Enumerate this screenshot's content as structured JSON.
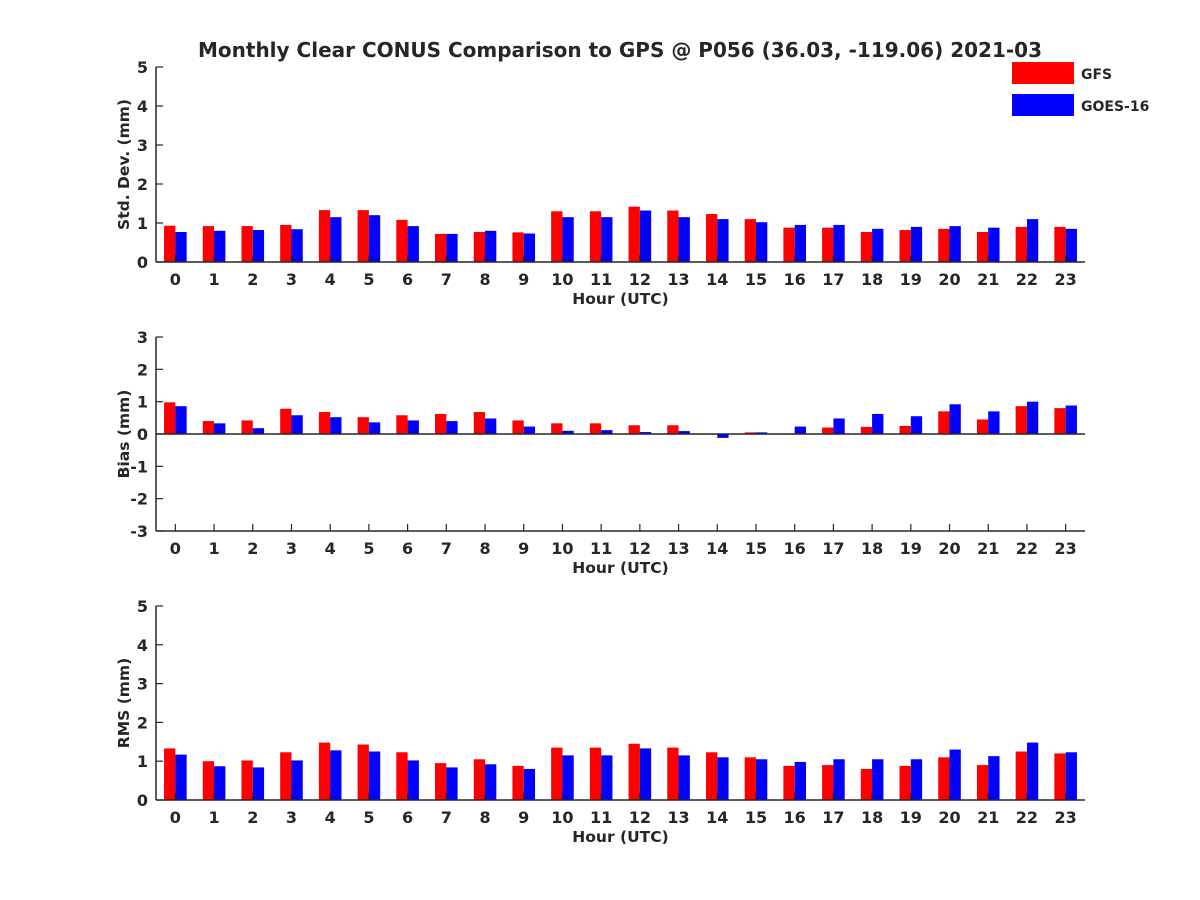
{
  "title": "Monthly Clear CONUS Comparison to GPS @ P056 (36.03, -119.06) 2021-03",
  "colors": {
    "GFS": "#ff0000",
    "GOES-16": "#0000ff",
    "axis": "#262626"
  },
  "legend": {
    "placement": "top-right",
    "items": [
      "GFS",
      "GOES-16"
    ]
  },
  "chart_data": [
    {
      "type": "bar",
      "xlabel": "Hour (UTC)",
      "ylabel": "Std. Dev. (mm)",
      "ylim": [
        0,
        5
      ],
      "yticks": [
        0,
        1,
        2,
        3,
        4,
        5
      ],
      "grid": false,
      "categories": [
        "0",
        "1",
        "2",
        "3",
        "4",
        "5",
        "6",
        "7",
        "8",
        "9",
        "10",
        "11",
        "12",
        "13",
        "14",
        "15",
        "16",
        "17",
        "18",
        "19",
        "20",
        "21",
        "22",
        "23"
      ],
      "series": [
        {
          "name": "GFS",
          "values": [
            0.93,
            0.92,
            0.92,
            0.95,
            1.33,
            1.33,
            1.08,
            0.72,
            0.77,
            0.76,
            1.3,
            1.3,
            1.42,
            1.32,
            1.23,
            1.1,
            0.88,
            0.88,
            0.77,
            0.82,
            0.85,
            0.77,
            0.9,
            0.9
          ]
        },
        {
          "name": "GOES-16",
          "values": [
            0.77,
            0.8,
            0.82,
            0.84,
            1.15,
            1.2,
            0.92,
            0.72,
            0.8,
            0.73,
            1.15,
            1.15,
            1.32,
            1.15,
            1.1,
            1.02,
            0.95,
            0.95,
            0.85,
            0.9,
            0.92,
            0.88,
            1.1,
            0.85
          ]
        }
      ]
    },
    {
      "type": "bar",
      "xlabel": "Hour (UTC)",
      "ylabel": "Bias (mm)",
      "ylim": [
        -3,
        3
      ],
      "yticks": [
        -3,
        -2,
        -1,
        0,
        1,
        2,
        3
      ],
      "grid": false,
      "categories": [
        "0",
        "1",
        "2",
        "3",
        "4",
        "5",
        "6",
        "7",
        "8",
        "9",
        "10",
        "11",
        "12",
        "13",
        "14",
        "15",
        "16",
        "17",
        "18",
        "19",
        "20",
        "21",
        "22",
        "23"
      ],
      "series": [
        {
          "name": "GFS",
          "values": [
            0.98,
            0.4,
            0.42,
            0.78,
            0.68,
            0.52,
            0.58,
            0.62,
            0.68,
            0.42,
            0.33,
            0.33,
            0.27,
            0.27,
            0.0,
            0.05,
            0.0,
            0.2,
            0.22,
            0.25,
            0.7,
            0.45,
            0.86,
            0.8
          ]
        },
        {
          "name": "GOES-16",
          "values": [
            0.86,
            0.33,
            0.18,
            0.58,
            0.52,
            0.36,
            0.42,
            0.4,
            0.48,
            0.23,
            0.1,
            0.12,
            0.06,
            0.09,
            -0.12,
            0.05,
            0.23,
            0.48,
            0.62,
            0.55,
            0.92,
            0.7,
            1.0,
            0.88
          ]
        }
      ]
    },
    {
      "type": "bar",
      "xlabel": "Hour (UTC)",
      "ylabel": "RMS (mm)",
      "ylim": [
        0,
        5
      ],
      "yticks": [
        0,
        1,
        2,
        3,
        4,
        5
      ],
      "grid": false,
      "categories": [
        "0",
        "1",
        "2",
        "3",
        "4",
        "5",
        "6",
        "7",
        "8",
        "9",
        "10",
        "11",
        "12",
        "13",
        "14",
        "15",
        "16",
        "17",
        "18",
        "19",
        "20",
        "21",
        "22",
        "23"
      ],
      "series": [
        {
          "name": "GFS",
          "values": [
            1.33,
            1.0,
            1.02,
            1.23,
            1.48,
            1.43,
            1.23,
            0.95,
            1.05,
            0.88,
            1.35,
            1.35,
            1.45,
            1.35,
            1.23,
            1.1,
            0.88,
            0.9,
            0.8,
            0.88,
            1.1,
            0.9,
            1.25,
            1.2
          ]
        },
        {
          "name": "GOES-16",
          "values": [
            1.17,
            0.87,
            0.84,
            1.02,
            1.28,
            1.25,
            1.02,
            0.84,
            0.92,
            0.8,
            1.15,
            1.15,
            1.33,
            1.15,
            1.1,
            1.05,
            0.98,
            1.05,
            1.05,
            1.05,
            1.3,
            1.13,
            1.48,
            1.23
          ]
        }
      ]
    }
  ]
}
